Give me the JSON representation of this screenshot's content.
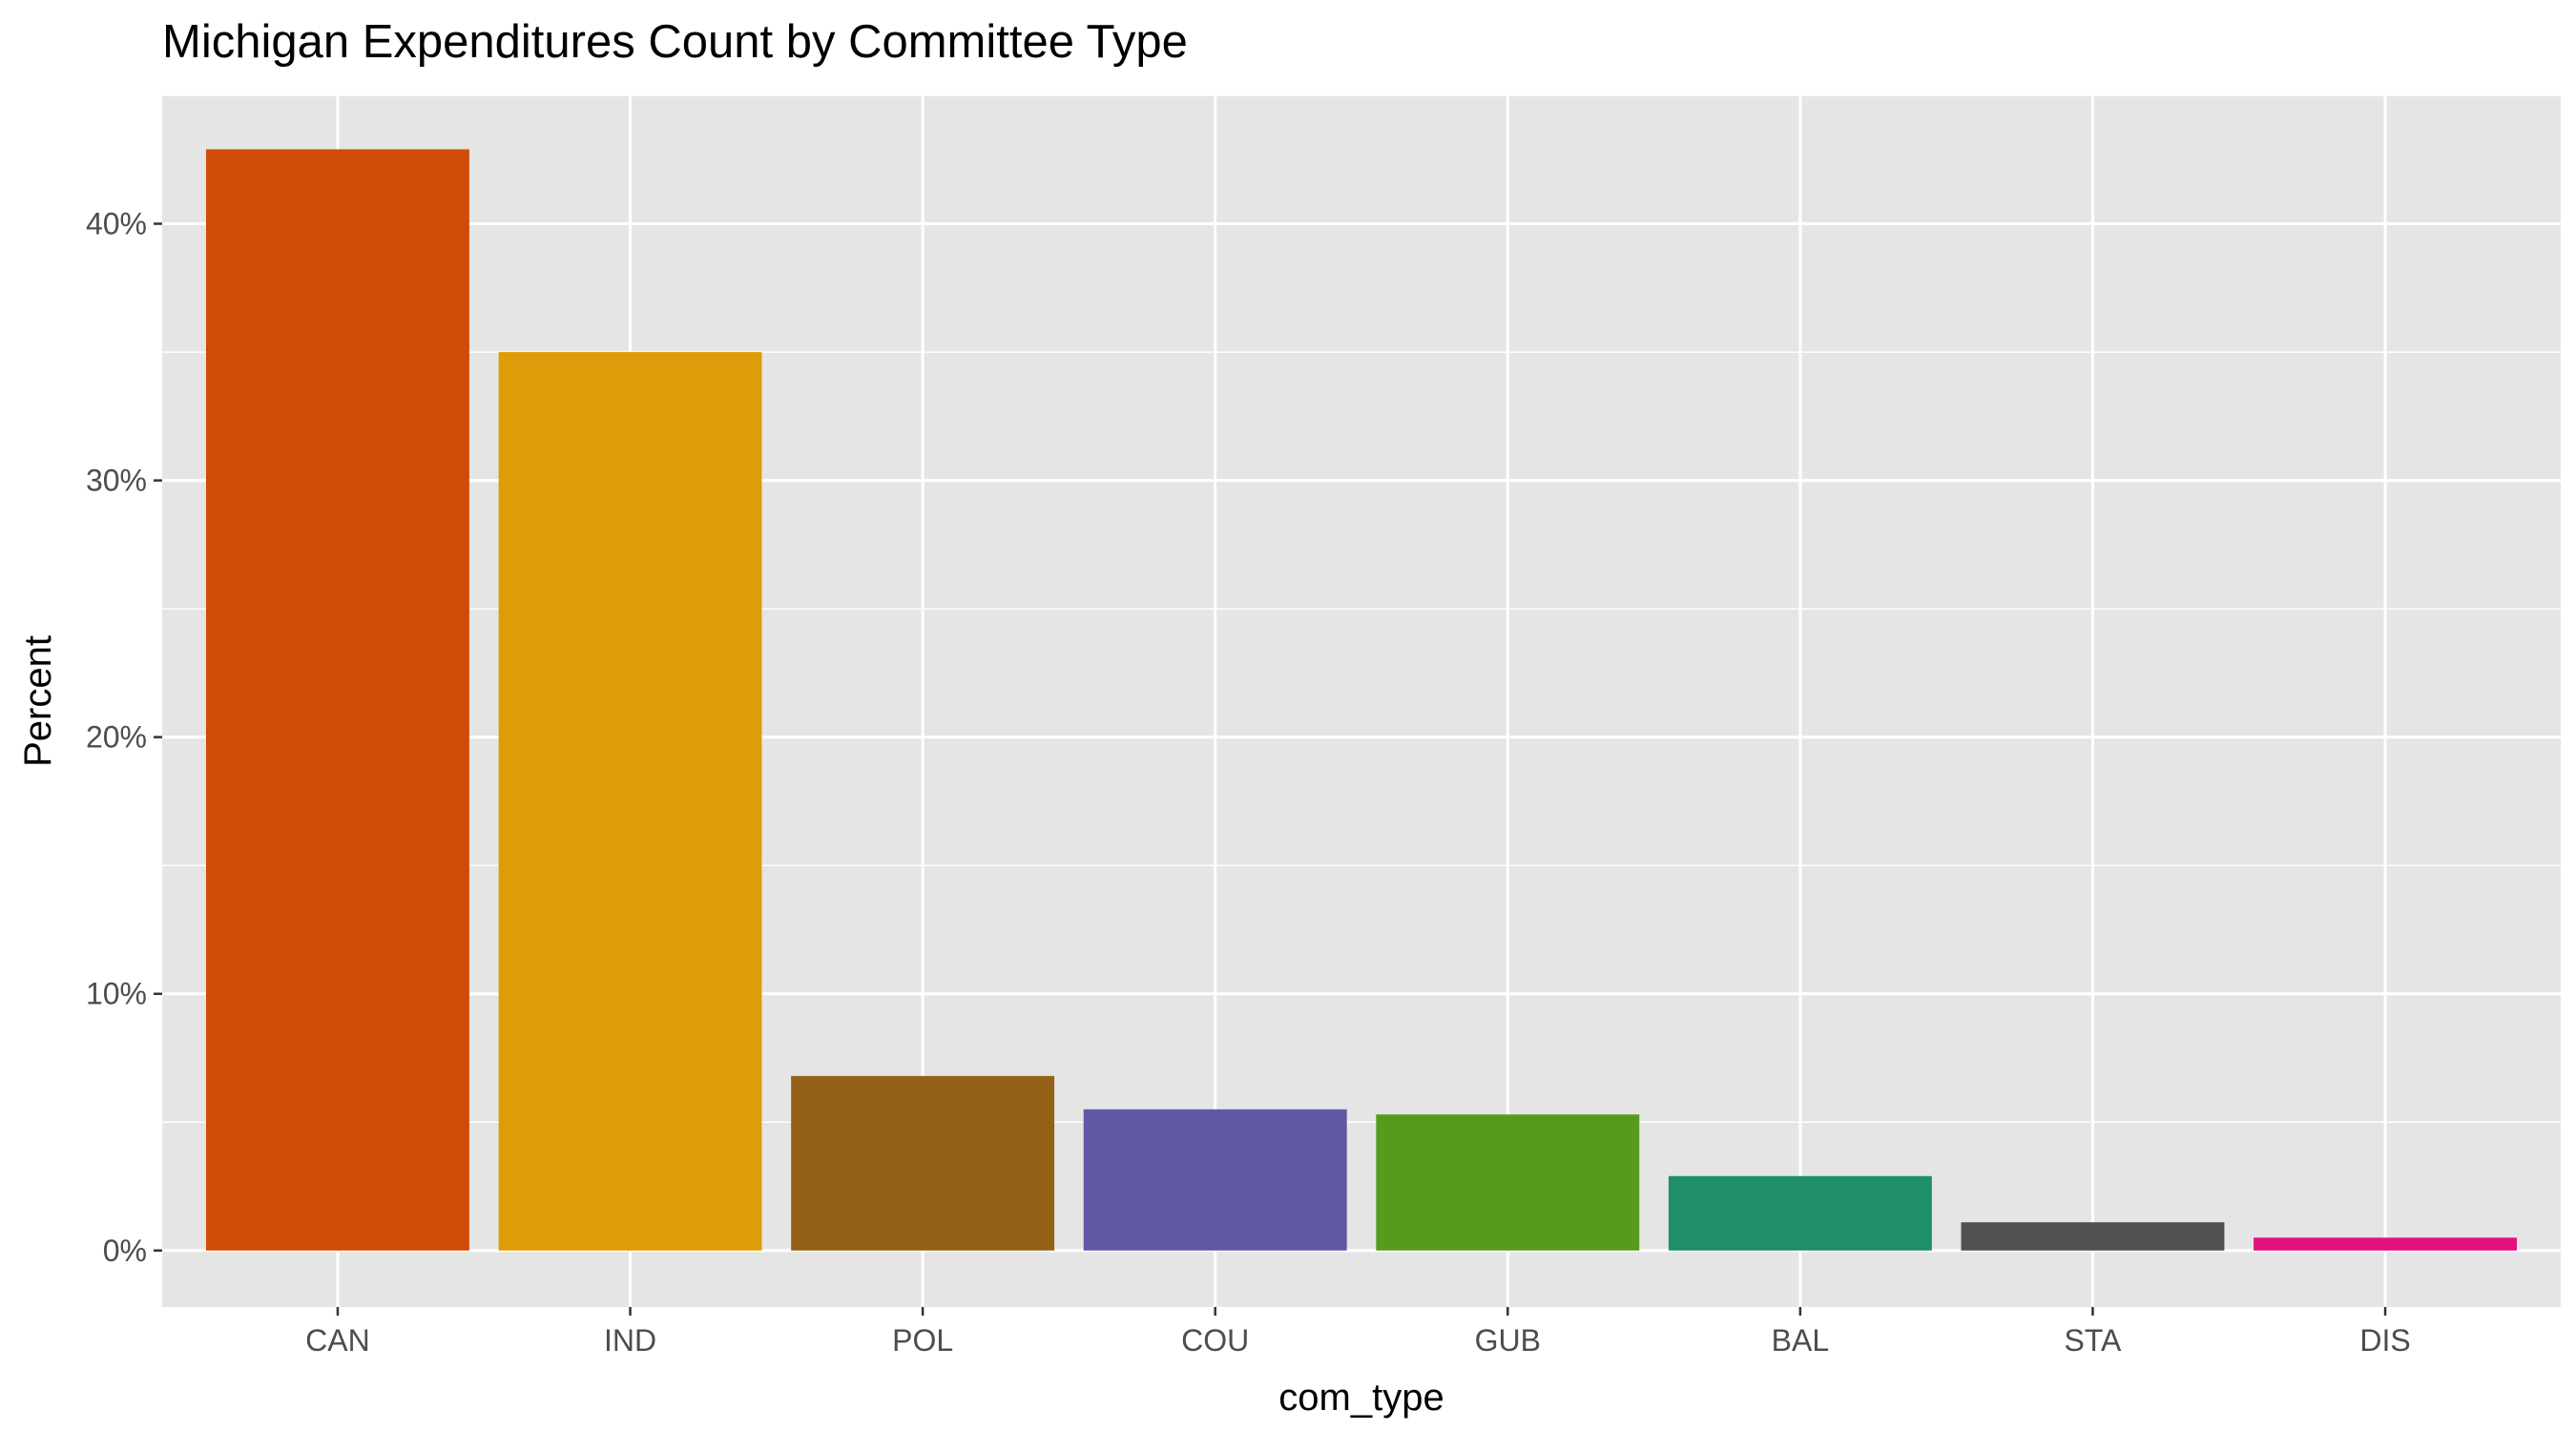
{
  "chart_data": {
    "type": "bar",
    "title": "Michigan Expenditures Count by Committee Type",
    "xlabel": "com_type",
    "ylabel": "Percent",
    "categories": [
      "CAN",
      "IND",
      "POL",
      "COU",
      "GUB",
      "BAL",
      "STA",
      "DIS"
    ],
    "values": [
      42.9,
      35.0,
      6.8,
      5.5,
      5.3,
      2.9,
      1.1,
      0.5
    ],
    "colors": [
      "#D04A08",
      "#DE9D08",
      "#946216",
      "#6158A4",
      "#579B1D",
      "#1E8F67",
      "#515151",
      "#E3107F"
    ],
    "ylim": [
      -2.2,
      45.0
    ],
    "yticks": [
      0,
      10,
      20,
      30,
      40
    ],
    "ytick_labels": [
      "0%",
      "10%",
      "20%",
      "30%",
      "40%"
    ],
    "grid": true,
    "legend": "none",
    "panel_background": "#E5E5E5",
    "grid_color": "#FFFFFF"
  }
}
